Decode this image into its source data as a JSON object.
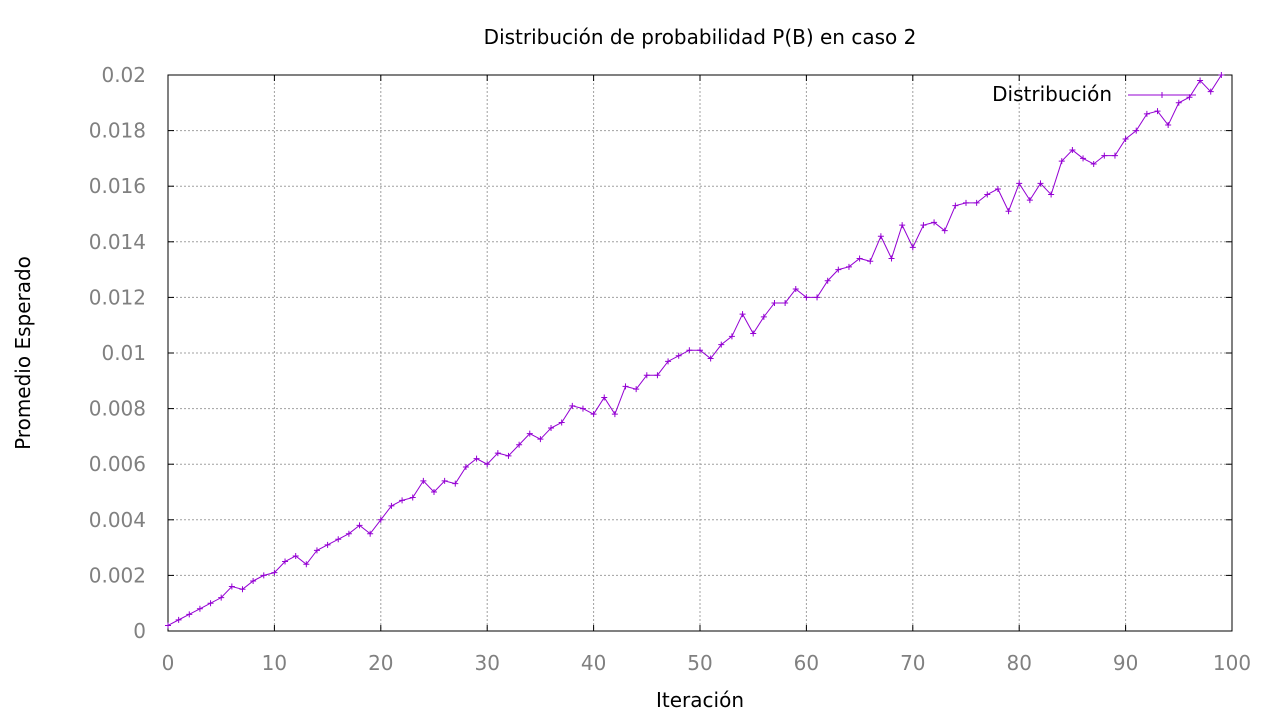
{
  "chart_data": {
    "type": "line",
    "title": "Distribución de probabilidad P(B) en caso 2",
    "xlabel": "Iteración",
    "ylabel": "Promedio Esperado",
    "xlim": [
      0,
      100
    ],
    "ylim": [
      0,
      0.02
    ],
    "x_ticks": [
      "0",
      "10",
      "20",
      "30",
      "40",
      "50",
      "60",
      "70",
      "80",
      "90",
      "100"
    ],
    "y_ticks": [
      "0",
      "0.002",
      "0.004",
      "0.006",
      "0.008",
      "0.01",
      "0.012",
      "0.014",
      "0.016",
      "0.018",
      "0.02"
    ],
    "grid": true,
    "legend_position": "top-right",
    "series": [
      {
        "name": "Distribución",
        "color": "#9400d3",
        "marker": "plus",
        "x": [
          0,
          1,
          2,
          3,
          4,
          5,
          6,
          7,
          8,
          9,
          10,
          11,
          12,
          13,
          14,
          15,
          16,
          17,
          18,
          19,
          20,
          21,
          22,
          23,
          24,
          25,
          26,
          27,
          28,
          29,
          30,
          31,
          32,
          33,
          34,
          35,
          36,
          37,
          38,
          39,
          40,
          41,
          42,
          43,
          44,
          45,
          46,
          47,
          48,
          49,
          50,
          51,
          52,
          53,
          54,
          55,
          56,
          57,
          58,
          59,
          60,
          61,
          62,
          63,
          64,
          65,
          66,
          67,
          68,
          69,
          70,
          71,
          72,
          73,
          74,
          75,
          76,
          77,
          78,
          79,
          80,
          81,
          82,
          83,
          84,
          85,
          86,
          87,
          88,
          89,
          90,
          91,
          92,
          93,
          94,
          95,
          96,
          97,
          98,
          99
        ],
        "values": [
          0.0002,
          0.0004,
          0.0006,
          0.0008,
          0.001,
          0.0012,
          0.0016,
          0.0015,
          0.0018,
          0.002,
          0.0021,
          0.0025,
          0.0027,
          0.0024,
          0.0029,
          0.0031,
          0.0033,
          0.0035,
          0.0038,
          0.0035,
          0.004,
          0.0045,
          0.0047,
          0.0048,
          0.0054,
          0.005,
          0.0054,
          0.0053,
          0.0059,
          0.0062,
          0.006,
          0.0064,
          0.0063,
          0.0067,
          0.0071,
          0.0069,
          0.0073,
          0.0075,
          0.0081,
          0.008,
          0.0078,
          0.0084,
          0.0078,
          0.0088,
          0.0087,
          0.0092,
          0.0092,
          0.0097,
          0.0099,
          0.0101,
          0.0101,
          0.0098,
          0.0103,
          0.0106,
          0.0114,
          0.0107,
          0.0113,
          0.0118,
          0.0118,
          0.0123,
          0.012,
          0.012,
          0.0126,
          0.013,
          0.0131,
          0.0134,
          0.0133,
          0.0142,
          0.0134,
          0.0146,
          0.0138,
          0.0146,
          0.0147,
          0.0144,
          0.0153,
          0.0154,
          0.0154,
          0.0157,
          0.0159,
          0.0151,
          0.0161,
          0.0155,
          0.0161,
          0.0157,
          0.0169,
          0.0173,
          0.017,
          0.0168,
          0.0171,
          0.0171,
          0.0177,
          0.018,
          0.0186,
          0.0187,
          0.0182,
          0.019,
          0.0192,
          0.0198,
          0.0194,
          0.02
        ]
      }
    ]
  }
}
